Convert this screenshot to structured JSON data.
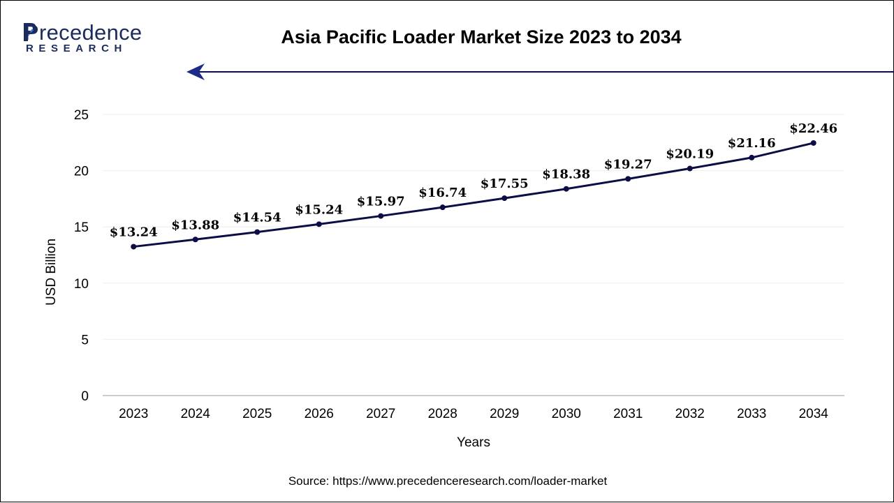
{
  "logo": {
    "main": "Precedence",
    "sub": "RESEARCH"
  },
  "title": "Asia Pacific Loader Market Size 2023 to 2034",
  "source": "Source: https://www.precedenceresearch.com/loader-market",
  "colors": {
    "line": "#0d0d45",
    "brand": "#1c2b5e",
    "grid": "#eeeeee",
    "axis": "#bbbbbb"
  },
  "chart_data": {
    "type": "line",
    "title": "Asia Pacific Loader Market Size 2023 to 2034",
    "xlabel": "Years",
    "ylabel": "USD Billion",
    "categories": [
      "2023",
      "2024",
      "2025",
      "2026",
      "2027",
      "2028",
      "2029",
      "2030",
      "2031",
      "2032",
      "2033",
      "2034"
    ],
    "values": [
      13.24,
      13.88,
      14.54,
      15.24,
      15.97,
      16.74,
      17.55,
      18.38,
      19.27,
      20.19,
      21.16,
      22.46
    ],
    "data_labels": [
      "$13.24",
      "$13.88",
      "$14.54",
      "$15.24",
      "$15.97",
      "$16.74",
      "$17.55",
      "$18.38",
      "$19.27",
      "$20.19",
      "$21.16",
      "$22.46"
    ],
    "yticks": [
      "0",
      "5",
      "10",
      "15",
      "20",
      "25"
    ],
    "ylim": [
      0,
      25
    ],
    "grid": true,
    "legend": "none"
  }
}
